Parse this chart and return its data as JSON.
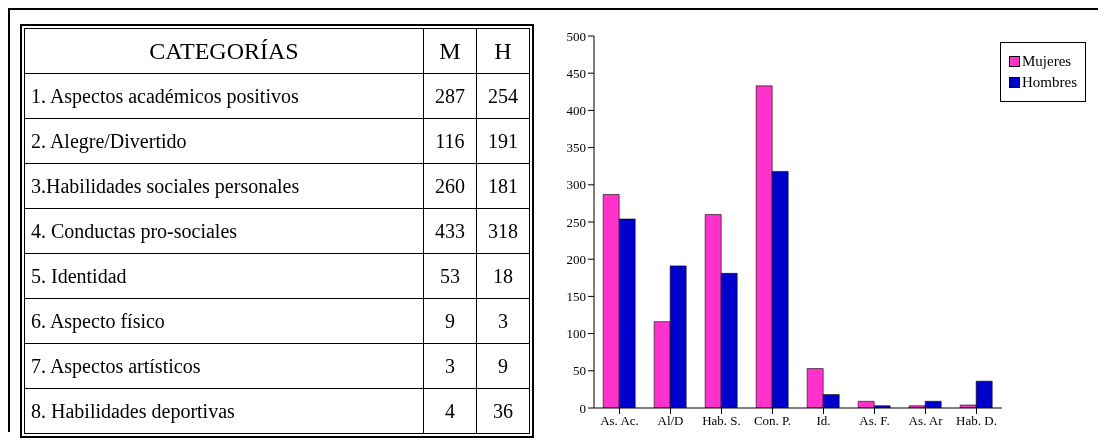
{
  "chart_data": [
    {
      "type": "other",
      "title": "CATEGORÍAS",
      "categories": [
        "1. Aspectos académicos positivos",
        "2. Alegre/Divertido",
        "3.Habilidades sociales personales",
        "4. Conductas pro-sociales",
        "5. Identidad",
        "6. Aspecto físico",
        "7. Aspectos artísticos",
        "8. Habilidades deportivas"
      ],
      "series": [
        {
          "name": "M",
          "values": [
            287,
            116,
            260,
            433,
            53,
            9,
            3,
            4
          ]
        },
        {
          "name": "H",
          "values": [
            254,
            191,
            181,
            318,
            18,
            3,
            9,
            36
          ]
        }
      ],
      "data_labels": true
    },
    {
      "type": "bar",
      "categories": [
        "As. Ac.",
        "Al/D",
        "Hab. S.",
        "Con. P.",
        "Id.",
        "As. F.",
        "As. Ar",
        "Hab. D."
      ],
      "series": [
        {
          "name": "Mujeres",
          "color": "#ff33cc",
          "values": [
            287,
            116,
            260,
            433,
            53,
            9,
            3,
            4
          ]
        },
        {
          "name": "Hombres",
          "color": "#0000cc",
          "values": [
            254,
            191,
            181,
            318,
            18,
            3,
            9,
            36
          ]
        }
      ],
      "ylim": [
        0,
        500
      ],
      "yticks": [
        0,
        50,
        100,
        150,
        200,
        250,
        300,
        350,
        400,
        450,
        500
      ],
      "grid": false,
      "legend": "top right"
    }
  ]
}
